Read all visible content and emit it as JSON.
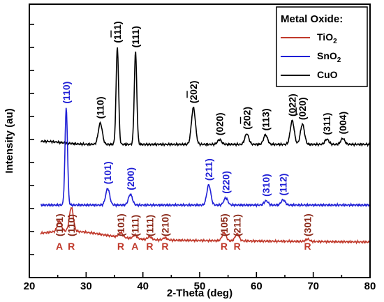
{
  "chart_data": {
    "type": "line",
    "xlabel": "2-Theta (deg)",
    "ylabel": "Intensity (au)",
    "xlim": [
      20,
      80
    ],
    "xticks": [
      20,
      30,
      40,
      50,
      60,
      70,
      80
    ],
    "y_tick_labels_shown": false,
    "legend": {
      "title": "Metal Oxide:",
      "placement": "top-right",
      "entries": [
        {
          "series": "TiO2",
          "label": "TiO",
          "sub": "2",
          "color": "#c0392b"
        },
        {
          "series": "SnO2",
          "label": "SnO",
          "sub": "2",
          "color": "#1f1fd6"
        },
        {
          "series": "CuO",
          "label": "CuO",
          "sub": "",
          "color": "#000000"
        }
      ]
    },
    "series": [
      {
        "name": "CuO",
        "color": "#000000",
        "baseline": 0.6,
        "broad_hump": {
          "center": 22.5,
          "height": 0.13,
          "width": 3.0
        },
        "peaks": [
          {
            "two_theta": 32.5,
            "height": 0.9,
            "label": "(110)",
            "overline": false
          },
          {
            "two_theta": 35.5,
            "height": 4.1,
            "label": "(111)",
            "overline": true
          },
          {
            "two_theta": 38.7,
            "height": 3.9,
            "label": "(111)",
            "overline": false
          },
          {
            "two_theta": 48.9,
            "height": 1.55,
            "label": "(202)",
            "overline": true
          },
          {
            "two_theta": 53.5,
            "height": 0.2,
            "label": "(020)",
            "overline": false
          },
          {
            "two_theta": 58.3,
            "height": 0.45,
            "label": "(202)",
            "overline": true
          },
          {
            "two_theta": 61.6,
            "height": 0.4,
            "label": "(113)",
            "overline": false
          },
          {
            "two_theta": 66.3,
            "height": 1.0,
            "label": "(022)",
            "overline": false
          },
          {
            "two_theta": 68.1,
            "height": 0.85,
            "label": "(020)",
            "overline": true
          },
          {
            "two_theta": 72.4,
            "height": 0.22,
            "label": "(311)",
            "overline": false
          },
          {
            "two_theta": 75.2,
            "height": 0.25,
            "label": "(004)",
            "overline": false
          }
        ]
      },
      {
        "name": "SnO2",
        "color": "#1f1fd6",
        "baseline": 0.0,
        "peaks": [
          {
            "two_theta": 26.5,
            "height": 4.1,
            "label": "(110)",
            "overline": false
          },
          {
            "two_theta": 33.8,
            "height": 0.7,
            "label": "(101)",
            "overline": false
          },
          {
            "two_theta": 37.8,
            "height": 0.45,
            "label": "(200)",
            "overline": false
          },
          {
            "two_theta": 51.6,
            "height": 0.85,
            "label": "(211)",
            "overline": false
          },
          {
            "two_theta": 54.6,
            "height": 0.3,
            "label": "(220)",
            "overline": false
          },
          {
            "two_theta": 61.7,
            "height": 0.18,
            "label": "(310)",
            "overline": false
          },
          {
            "two_theta": 64.7,
            "height": 0.22,
            "label": "(112)",
            "overline": false
          }
        ]
      },
      {
        "name": "TiO2",
        "color": "#c0392b",
        "baseline": -1.0,
        "peaks": [
          {
            "two_theta": 25.3,
            "height": 0.45,
            "label": "(101)",
            "phase": "A",
            "overline": false
          },
          {
            "two_theta": 27.4,
            "height": 1.0,
            "label": "(110)",
            "phase": "R",
            "overline": false
          },
          {
            "two_theta": 36.1,
            "height": 0.2,
            "label": "(101)",
            "phase": "R",
            "overline": false
          },
          {
            "two_theta": 38.6,
            "height": 0.15,
            "label": "(111)",
            "phase": "A",
            "overline": false
          },
          {
            "two_theta": 41.2,
            "height": 0.12,
            "label": "(111)",
            "phase": "R",
            "overline": false
          },
          {
            "two_theta": 43.9,
            "height": 0.1,
            "label": "(210)",
            "phase": "R",
            "overline": false
          },
          {
            "two_theta": 54.3,
            "height": 0.35,
            "label": "(105)",
            "phase": "R",
            "overline": false
          },
          {
            "two_theta": 56.6,
            "height": 0.3,
            "label": "(211)",
            "phase": "R",
            "overline": false
          },
          {
            "two_theta": 69.0,
            "height": 0.1,
            "label": "(301)",
            "phase": "R",
            "overline": false
          }
        ]
      }
    ]
  }
}
